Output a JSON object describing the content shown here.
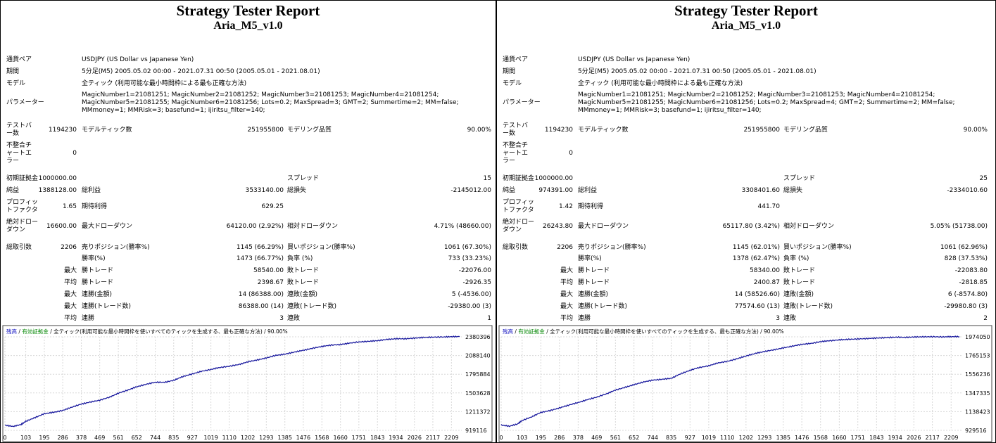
{
  "colors": {
    "equity_line": "#1a1a9e",
    "grid": "#d8d8d8",
    "legend_blue": "#1010c0",
    "legend_green": "#0a8a0a"
  },
  "reports": [
    {
      "title": "Strategy Tester Report",
      "subtitle": "Aria_M5_v1.0",
      "labels": {
        "pair": "通貨ペア",
        "period": "期間",
        "model": "モデル",
        "params": "パラメーター",
        "bars": "テストバー数",
        "model_ticks": "モデルティック数",
        "model_quality": "モデリング品質",
        "mismatch": "不整合チャートエラー",
        "initial_deposit": "初期証拠金",
        "spread": "スプレッド",
        "net_profit": "純益",
        "gross_profit": "総利益",
        "gross_loss": "総損失",
        "profit_factor": "プロフィットファクタ",
        "expected_payoff": "期待利得",
        "abs_dd": "絶対ドローダウン",
        "max_dd": "最大ドローダウン",
        "rel_dd": "相対ドローダウン",
        "total_trades": "総取引数",
        "short_pos": "売りポジション(勝率%)",
        "long_pos": "買いポジション(勝率%)",
        "win_rate": "勝率(%)",
        "loss_rate": "負率 (%)",
        "max": "最大",
        "avg": "平均",
        "win_trade": "勝トレード",
        "loss_trade": "敗トレード",
        "cons_wins_money": "連勝(金額)",
        "cons_losses_money": "連敗(金額)",
        "cons_wins_count": "連勝(トレード数)",
        "cons_losses_count": "連敗(トレード数)",
        "cons_wins": "連勝",
        "cons_losses": "連敗"
      },
      "values": {
        "pair": "USDJPY (US Dollar vs Japanese Yen)",
        "period": "5分足(M5) 2005.05.02 00:00 - 2021.07.31 00:50 (2005.05.01 - 2021.08.01)",
        "model": "全ティック (利用可能な最小時間枠による最も正確な方法)",
        "params": "MagicNumber1=21081251; MagicNumber2=21081252; MagicNumber3=21081253; MagicNumber4=21081254; MagicNumber5=21081255; MagicNumber6=21081256; Lots=0.2; MaxSpread=3; GMT=2; Summertime=2; MM=false; MMmoney=1; MMRisk=3; basefund=1; ijiritsu_filter=140;",
        "bars": "1194230",
        "model_ticks": "251955800",
        "model_quality": "90.00%",
        "mismatch": "0",
        "initial_deposit": "1000000.00",
        "spread": "15",
        "net_profit": "1388128.00",
        "gross_profit": "3533140.00",
        "gross_loss": "-2145012.00",
        "profit_factor": "1.65",
        "expected_payoff": "629.25",
        "abs_dd": "16600.00",
        "max_dd": "64120.00 (2.92%)",
        "rel_dd": "4.71% (48660.00)",
        "total_trades": "2206",
        "short_pos": "1145 (66.29%)",
        "long_pos": "1061 (67.30%)",
        "win_rate": "1473 (66.77%)",
        "loss_rate": "733 (33.23%)",
        "max_win": "58540.00",
        "max_loss": "-22076.00",
        "avg_win": "2398.67",
        "avg_loss": "-2926.35",
        "max_cons_wins_money": "14 (86388.00)",
        "max_cons_losses_money": "5 (-4536.00)",
        "max_cons_wins_count": "86388.00 (14)",
        "max_cons_losses_count": "-29380.00 (3)",
        "avg_cons_wins": "3",
        "avg_cons_losses": "1"
      },
      "chart_legend": {
        "balance": "残高",
        "equity": "有効証拠金",
        "rest": "/ 全ティック(利用可能な最小時間枠を使いすべてのティックを生成する、最も正確な方法) / 90.00%"
      },
      "chart_data": {
        "type": "line",
        "x_ticks": [
          "0",
          "103",
          "195",
          "286",
          "378",
          "469",
          "561",
          "652",
          "744",
          "835",
          "927",
          "1019",
          "1110",
          "1202",
          "1293",
          "1385",
          "1476",
          "1568",
          "1660",
          "1751",
          "1843",
          "1934",
          "2026",
          "2117",
          "2209"
        ],
        "y_ticks": [
          "2380396",
          "2088140",
          "1795884",
          "1503628",
          "1211372",
          "919116"
        ],
        "ylim": [
          919116,
          2380396
        ],
        "xlim": [
          0,
          2260
        ],
        "series": [
          {
            "values": [
              [
                0,
                1000000
              ],
              [
                40,
                980000
              ],
              [
                80,
                1010000
              ],
              [
                103,
                1060000
              ],
              [
                150,
                1120000
              ],
              [
                195,
                1180000
              ],
              [
                240,
                1200000
              ],
              [
                286,
                1230000
              ],
              [
                330,
                1280000
              ],
              [
                378,
                1330000
              ],
              [
                420,
                1360000
              ],
              [
                469,
                1390000
              ],
              [
                520,
                1440000
              ],
              [
                561,
                1500000
              ],
              [
                610,
                1550000
              ],
              [
                652,
                1600000
              ],
              [
                700,
                1640000
              ],
              [
                744,
                1670000
              ],
              [
                790,
                1670000
              ],
              [
                835,
                1700000
              ],
              [
                880,
                1760000
              ],
              [
                927,
                1800000
              ],
              [
                970,
                1840000
              ],
              [
                1019,
                1870000
              ],
              [
                1060,
                1900000
              ],
              [
                1110,
                1920000
              ],
              [
                1160,
                1950000
              ],
              [
                1202,
                1990000
              ],
              [
                1250,
                2020000
              ],
              [
                1293,
                2050000
              ],
              [
                1340,
                2090000
              ],
              [
                1385,
                2110000
              ],
              [
                1430,
                2140000
              ],
              [
                1476,
                2170000
              ],
              [
                1520,
                2200000
              ],
              [
                1568,
                2230000
              ],
              [
                1610,
                2250000
              ],
              [
                1660,
                2260000
              ],
              [
                1700,
                2280000
              ],
              [
                1751,
                2300000
              ],
              [
                1800,
                2310000
              ],
              [
                1843,
                2320000
              ],
              [
                1890,
                2340000
              ],
              [
                1934,
                2350000
              ],
              [
                1980,
                2350000
              ],
              [
                2026,
                2360000
              ],
              [
                2070,
                2370000
              ],
              [
                2117,
                2375000
              ],
              [
                2170,
                2378000
              ],
              [
                2209,
                2383000
              ],
              [
                2250,
                2385000
              ]
            ]
          }
        ]
      }
    },
    {
      "title": "Strategy Tester Report",
      "subtitle": "Aria_M5_v1.0",
      "labels": {
        "pair": "通貨ペア",
        "period": "期間",
        "model": "モデル",
        "params": "パラメーター",
        "bars": "テストバー数",
        "model_ticks": "モデルティック数",
        "model_quality": "モデリング品質",
        "mismatch": "不整合チャートエラー",
        "initial_deposit": "初期証拠金",
        "spread": "スプレッド",
        "net_profit": "純益",
        "gross_profit": "総利益",
        "gross_loss": "総損失",
        "profit_factor": "プロフィットファクタ",
        "expected_payoff": "期待利得",
        "abs_dd": "絶対ドローダウン",
        "max_dd": "最大ドローダウン",
        "rel_dd": "相対ドローダウン",
        "total_trades": "総取引数",
        "short_pos": "売りポジション(勝率%)",
        "long_pos": "買いポジション(勝率%)",
        "win_rate": "勝率(%)",
        "loss_rate": "負率 (%)",
        "max": "最大",
        "avg": "平均",
        "win_trade": "勝トレード",
        "loss_trade": "敗トレード",
        "cons_wins_money": "連勝(金額)",
        "cons_losses_money": "連敗(金額)",
        "cons_wins_count": "連勝(トレード数)",
        "cons_losses_count": "連敗(トレード数)",
        "cons_wins": "連勝",
        "cons_losses": "連敗"
      },
      "values": {
        "pair": "USDJPY (US Dollar vs Japanese Yen)",
        "period": "5分足(M5) 2005.05.02 00:00 - 2021.07.31 00:50 (2005.05.01 - 2021.08.01)",
        "model": "全ティック (利用可能な最小時間枠による最も正確な方法)",
        "params": "MagicNumber1=21081251; MagicNumber2=21081252; MagicNumber3=21081253; MagicNumber4=21081254; MagicNumber5=21081255; MagicNumber6=21081256; Lots=0.2; MaxSpread=4; GMT=2; Summertime=2; MM=false; MMmoney=1; MMRisk=3; basefund=1; ijiritsu_filter=140;",
        "bars": "1194230",
        "model_ticks": "251955800",
        "model_quality": "90.00%",
        "mismatch": "0",
        "initial_deposit": "1000000.00",
        "spread": "25",
        "net_profit": "974391.00",
        "gross_profit": "3308401.60",
        "gross_loss": "-2334010.60",
        "profit_factor": "1.42",
        "expected_payoff": "441.70",
        "abs_dd": "26243.80",
        "max_dd": "65117.80 (3.42%)",
        "rel_dd": "5.05% (51738.00)",
        "total_trades": "2206",
        "short_pos": "1145 (62.01%)",
        "long_pos": "1061 (62.96%)",
        "win_rate": "1378 (62.47%)",
        "loss_rate": "828 (37.53%)",
        "max_win": "58340.00",
        "max_loss": "-22083.80",
        "avg_win": "2400.87",
        "avg_loss": "-2818.85",
        "max_cons_wins_money": "14 (58526.60)",
        "max_cons_losses_money": "6 (-8574.80)",
        "max_cons_wins_count": "77574.60 (13)",
        "max_cons_losses_count": "-29980.80 (3)",
        "avg_cons_wins": "3",
        "avg_cons_losses": "2"
      },
      "chart_legend": {
        "balance": "残高",
        "equity": "有効証拠金",
        "rest": "/ 全ティック(利用可能な最小時間枠を使いすべてのティックを生成する、最も正確な方法) / 90.00%"
      },
      "chart_data": {
        "type": "line",
        "x_ticks": [
          "0",
          "103",
          "195",
          "286",
          "378",
          "469",
          "561",
          "652",
          "744",
          "835",
          "927",
          "1019",
          "1110",
          "1202",
          "1293",
          "1385",
          "1476",
          "1568",
          "1660",
          "1751",
          "1843",
          "1934",
          "2026",
          "2117",
          "2209"
        ],
        "y_ticks": [
          "1974050",
          "1765153",
          "1556236",
          "1347335",
          "1138423",
          "929516"
        ],
        "ylim": [
          929516,
          1974050
        ],
        "xlim": [
          0,
          2260
        ],
        "series": [
          {
            "values": [
              [
                0,
                990000
              ],
              [
                40,
                975000
              ],
              [
                80,
                1000000
              ],
              [
                103,
                1040000
              ],
              [
                150,
                1080000
              ],
              [
                195,
                1130000
              ],
              [
                240,
                1150000
              ],
              [
                286,
                1180000
              ],
              [
                330,
                1210000
              ],
              [
                378,
                1240000
              ],
              [
                420,
                1270000
              ],
              [
                469,
                1300000
              ],
              [
                520,
                1340000
              ],
              [
                561,
                1380000
              ],
              [
                610,
                1410000
              ],
              [
                652,
                1440000
              ],
              [
                700,
                1470000
              ],
              [
                744,
                1490000
              ],
              [
                790,
                1500000
              ],
              [
                835,
                1510000
              ],
              [
                880,
                1560000
              ],
              [
                927,
                1600000
              ],
              [
                970,
                1630000
              ],
              [
                1019,
                1650000
              ],
              [
                1060,
                1680000
              ],
              [
                1110,
                1700000
              ],
              [
                1160,
                1730000
              ],
              [
                1202,
                1760000
              ],
              [
                1250,
                1790000
              ],
              [
                1293,
                1810000
              ],
              [
                1340,
                1830000
              ],
              [
                1385,
                1850000
              ],
              [
                1430,
                1870000
              ],
              [
                1476,
                1890000
              ],
              [
                1520,
                1900000
              ],
              [
                1568,
                1920000
              ],
              [
                1610,
                1930000
              ],
              [
                1660,
                1940000
              ],
              [
                1700,
                1945000
              ],
              [
                1751,
                1950000
              ],
              [
                1800,
                1955000
              ],
              [
                1843,
                1960000
              ],
              [
                1890,
                1965000
              ],
              [
                1934,
                1970000
              ],
              [
                1980,
                1968000
              ],
              [
                2026,
                1972000
              ],
              [
                2070,
                1974000
              ],
              [
                2117,
                1975000
              ],
              [
                2170,
                1973000
              ],
              [
                2209,
                1976000
              ],
              [
                2250,
                1976000
              ]
            ]
          }
        ]
      }
    }
  ]
}
